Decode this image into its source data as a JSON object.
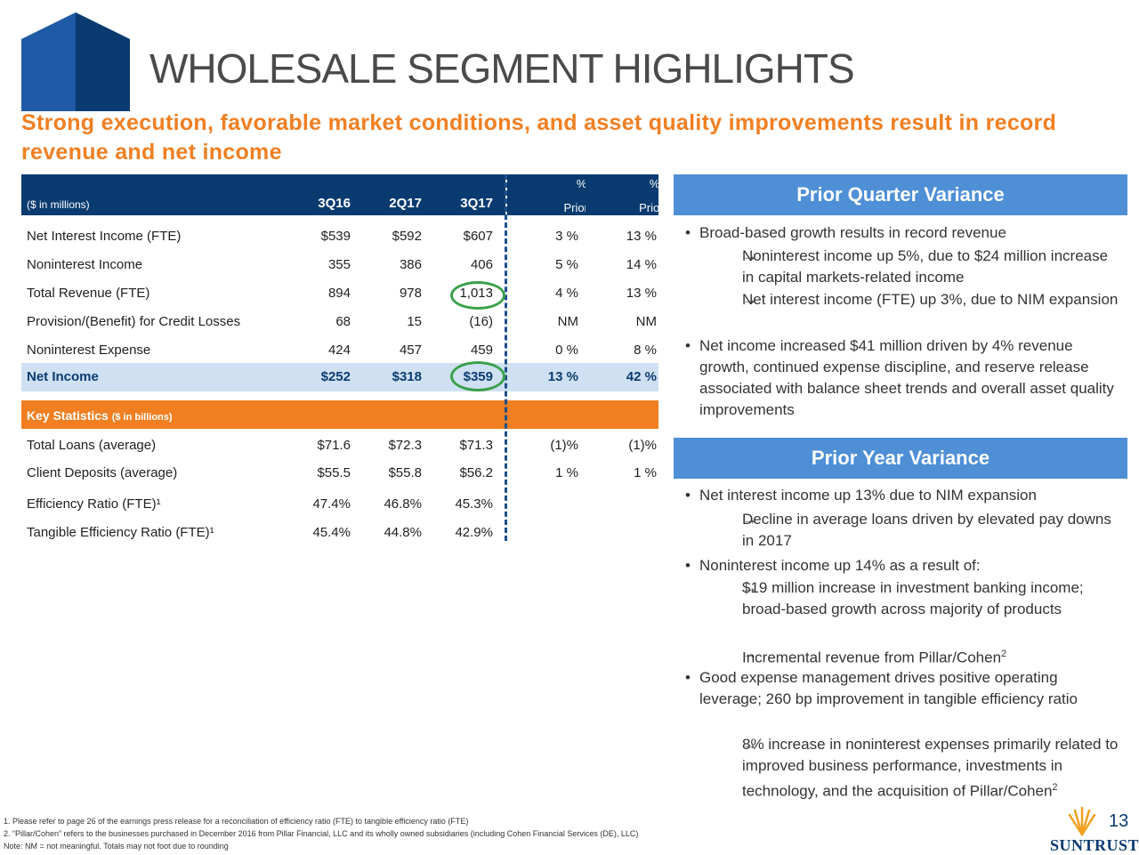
{
  "title": "WHOLESALE SEGMENT HIGHLIGHTS",
  "subtitle": "Strong execution, favorable market conditions, and asset quality improvements result in record revenue and net income",
  "table": {
    "units": "($ in millions)",
    "year_headers": [
      "3Q16",
      "2Q17",
      "3Q17"
    ],
    "pct_headers": [
      {
        "symbol": "%Δ",
        "label": "Prior Qtr"
      },
      {
        "symbol": "%Δ",
        "label": "Prior Yr"
      }
    ],
    "rows": [
      {
        "label": "Net Interest Income (FTE)",
        "values": [
          "$539",
          "$592",
          "$607"
        ],
        "pct": [
          "3 %",
          "13 %"
        ]
      },
      {
        "label": "Noninterest Income",
        "values": [
          "355",
          "386",
          "406"
        ],
        "pct": [
          "5 %",
          "14 %"
        ]
      },
      {
        "label": "Total Revenue (FTE)",
        "values": [
          "894",
          "978",
          "1,013"
        ],
        "pct": [
          "4 %",
          "13 %"
        ]
      },
      {
        "label": "Provision/(Benefit) for Credit Losses",
        "values": [
          "68",
          "15",
          "(16)"
        ],
        "pct": [
          "NM",
          "NM"
        ]
      },
      {
        "label": "Noninterest Expense",
        "values": [
          "424",
          "457",
          "459"
        ],
        "pct": [
          "0 %",
          "8 %"
        ]
      },
      {
        "label": "Net Income",
        "values": [
          "$252",
          "$318",
          "$359"
        ],
        "pct": [
          "13 %",
          "42 %"
        ]
      }
    ],
    "key_stats_title": "Key Statistics",
    "key_stats_units": "($ in billions)",
    "stats": [
      {
        "label": "Total Loans (average)",
        "values": [
          "$71.6",
          "$72.3",
          "$71.3"
        ],
        "pct": [
          "(1)%",
          "(1)%"
        ]
      },
      {
        "label": "Client Deposits (average)",
        "values": [
          "$55.5",
          "$55.8",
          "$56.2"
        ],
        "pct": [
          "1 %",
          "1 %"
        ]
      },
      {
        "label": "Efficiency Ratio (FTE)¹",
        "values": [
          "47.4%",
          "46.8%",
          "45.3%"
        ],
        "pct": [
          "",
          ""
        ]
      },
      {
        "label": "Tangible Efficiency Ratio (FTE)¹",
        "values": [
          "45.4%",
          "44.8%",
          "42.9%"
        ],
        "pct": [
          "",
          ""
        ]
      }
    ]
  },
  "prior_quarter": {
    "heading": "Prior Quarter Variance",
    "b1": "Broad-based growth results in record revenue",
    "b1_s1": "Noninterest income up 5%, due to $24 million increase in capital markets-related income",
    "b1_s2": "Net interest income (FTE) up 3%, due to NIM expansion",
    "b2": "Net income increased $41 million driven by 4% revenue growth, continued expense discipline, and reserve release associated with balance sheet trends and overall asset quality improvements"
  },
  "prior_year": {
    "heading": "Prior Year Variance",
    "b1": "Net interest income up 13% due to NIM expansion",
    "b1_s1": "Decline in average loans driven by elevated pay downs in 2017",
    "b2": "Noninterest income up 14% as a result of:",
    "b2_s1": "$19 million increase in investment banking income; broad-based growth across majority of products",
    "b2_s2": "Incremental revenue from Pillar/Cohen",
    "b3": "Good expense management drives positive operating leverage; 260 bp improvement in tangible efficiency ratio",
    "b3_s1": "8% increase in noninterest expenses primarily related to improved business performance, investments in technology, and the acquisition of Pillar/Cohen",
    "sup2": "2",
    "arrow": "→"
  },
  "footnotes": [
    "1. Please refer to page 26 of the earnings press release for a reconciliation of efficiency ratio (FTE) to tangible efficiency ratio (FTE)",
    "2. “Pillar/Cohen” refers to the businesses purchased in December 2016 from Pillar Financial, LLC and its wholly owned subsidiaries (including Cohen Financial Services (DE), LLC)",
    "Note: NM = not meaningful.  Totals may not foot due to rounding"
  ],
  "page_number": "13",
  "brand": "SUNTRUST",
  "colors": {
    "navy": "#0a3b70",
    "orange": "#f07f22",
    "blue": "#4e8fd6",
    "light_blue": "#cfe0f2",
    "green": "#3aa04a"
  }
}
